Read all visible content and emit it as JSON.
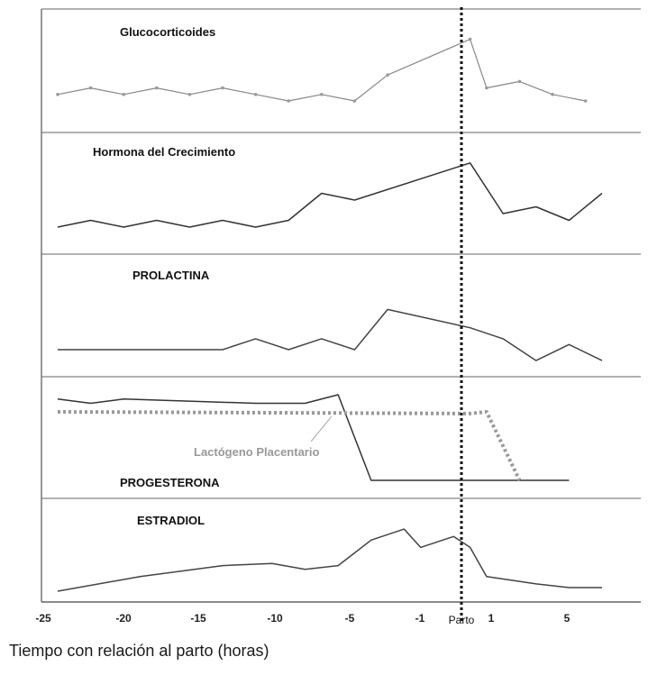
{
  "chart_data": {
    "type": "line",
    "xlabel": "Tiempo con relación al parto (horas)",
    "x_ticks": [
      "-25",
      "-20",
      "-15",
      "-10",
      "-5",
      "-1",
      "1",
      "5"
    ],
    "marker": {
      "x": 0,
      "label": "Parto"
    },
    "grid": false,
    "panels": [
      {
        "title": "Glucocorticoides",
        "series": [
          {
            "values": [
              [
                -25,
                0.1
              ],
              [
                -23,
                0.2
              ],
              [
                -21,
                0.1
              ],
              [
                -19,
                0.2
              ],
              [
                -17,
                0.1
              ],
              [
                -15,
                0.2
              ],
              [
                -13,
                0.1
              ],
              [
                -11,
                0.0
              ],
              [
                -9,
                0.1
              ],
              [
                -7,
                0.0
              ],
              [
                -5,
                0.4
              ],
              [
                0,
                0.95
              ],
              [
                1,
                0.2
              ],
              [
                3,
                0.3
              ],
              [
                5,
                0.1
              ],
              [
                7,
                0.0
              ]
            ]
          }
        ]
      },
      {
        "title": "Hormona del Crecimiento",
        "series": [
          {
            "values": [
              [
                -25,
                0.0
              ],
              [
                -23,
                0.1
              ],
              [
                -21,
                0.0
              ],
              [
                -19,
                0.1
              ],
              [
                -17,
                0.0
              ],
              [
                -15,
                0.1
              ],
              [
                -13,
                0.0
              ],
              [
                -11,
                0.1
              ],
              [
                -9,
                0.5
              ],
              [
                -7,
                0.4
              ],
              [
                0,
                0.95
              ],
              [
                2,
                0.2
              ],
              [
                4,
                0.3
              ],
              [
                6,
                0.1
              ],
              [
                8,
                0.5
              ]
            ]
          }
        ]
      },
      {
        "title": "PROLACTINA",
        "series": [
          {
            "values": [
              [
                -25,
                0.0
              ],
              [
                -15,
                0.0
              ],
              [
                -13,
                0.15
              ],
              [
                -11,
                0.0
              ],
              [
                -9,
                0.15
              ],
              [
                -7,
                0.0
              ],
              [
                -5,
                0.55
              ],
              [
                0,
                0.3
              ],
              [
                2,
                0.15
              ],
              [
                4,
                -0.15
              ],
              [
                6,
                0.07
              ],
              [
                8,
                -0.15
              ]
            ]
          }
        ]
      },
      {
        "title": "PROGESTERONA",
        "series": [
          {
            "values": [
              [
                -25,
                0.95
              ],
              [
                -23,
                0.9
              ],
              [
                -21,
                0.95
              ],
              [
                -13,
                0.9
              ],
              [
                -10,
                0.9
              ],
              [
                -8,
                1.0
              ],
              [
                -6,
                0.0
              ],
              [
                6,
                0.0
              ]
            ]
          },
          {
            "name": "Lactógeno Placentario",
            "style": "dotted",
            "values": [
              [
                -25,
                0.8
              ],
              [
                0,
                0.78
              ],
              [
                1,
                0.8
              ],
              [
                3,
                0.0
              ]
            ]
          }
        ]
      },
      {
        "title": "ESTRADIOL",
        "series": [
          {
            "values": [
              [
                -25,
                0.0
              ],
              [
                -20,
                0.2
              ],
              [
                -15,
                0.35
              ],
              [
                -12,
                0.38
              ],
              [
                -10,
                0.3
              ],
              [
                -8,
                0.35
              ],
              [
                -6,
                0.7
              ],
              [
                -4,
                0.85
              ],
              [
                -3,
                0.6
              ],
              [
                -1,
                0.75
              ],
              [
                0,
                0.6
              ],
              [
                1,
                0.2
              ],
              [
                4,
                0.1
              ],
              [
                6,
                0.05
              ],
              [
                8,
                0.05
              ]
            ]
          }
        ]
      }
    ]
  }
}
